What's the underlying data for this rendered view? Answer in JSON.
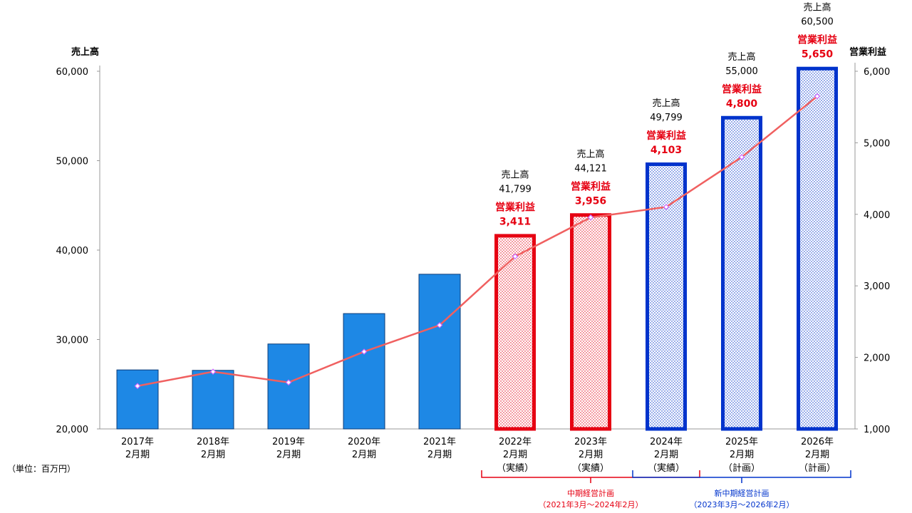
{
  "chart_data": {
    "type": "bar",
    "categories": [
      {
        "year": "2017年",
        "period": "2月期",
        "status": ""
      },
      {
        "year": "2018年",
        "period": "2月期",
        "status": ""
      },
      {
        "year": "2019年",
        "period": "2月期",
        "status": ""
      },
      {
        "year": "2020年",
        "period": "2月期",
        "status": ""
      },
      {
        "year": "2021年",
        "period": "2月期",
        "status": ""
      },
      {
        "year": "2022年",
        "period": "2月期",
        "status": "（実績）"
      },
      {
        "year": "2023年",
        "period": "2月期",
        "status": "（実績）"
      },
      {
        "year": "2024年",
        "period": "2月期",
        "status": "（実績）"
      },
      {
        "year": "2025年",
        "period": "2月期",
        "status": "（計画）"
      },
      {
        "year": "2026年",
        "period": "2月期",
        "status": "（計画）"
      }
    ],
    "series": [
      {
        "name": "売上高",
        "type": "bar",
        "axis": "left",
        "values": [
          26600,
          26550,
          29500,
          32900,
          37300,
          41799,
          44121,
          49799,
          55000,
          60500
        ],
        "styles": [
          "solid",
          "solid",
          "solid",
          "solid",
          "solid",
          "red-dotted",
          "red-dotted",
          "blue-dotted",
          "blue-dotted",
          "blue-dotted"
        ]
      },
      {
        "name": "営業利益",
        "type": "line",
        "axis": "right",
        "values": [
          1600,
          1800,
          1650,
          2080,
          2450,
          3411,
          3956,
          4103,
          4800,
          5650
        ],
        "color": "#f06060"
      }
    ],
    "labels": [
      null,
      null,
      null,
      null,
      null,
      {
        "sales_title": "売上高",
        "sales_value": "41,799",
        "profit_title": "営業利益",
        "profit_value": "3,411"
      },
      {
        "sales_title": "売上高",
        "sales_value": "44,121",
        "profit_title": "営業利益",
        "profit_value": "3,956"
      },
      {
        "sales_title": "売上高",
        "sales_value": "49,799",
        "profit_title": "営業利益",
        "profit_value": "4,103"
      },
      {
        "sales_title": "売上高",
        "sales_value": "55,000",
        "profit_title": "営業利益",
        "profit_value": "4,800"
      },
      {
        "sales_title": "売上高",
        "sales_value": "60,500",
        "profit_title": "営業利益",
        "profit_value": "5,650"
      }
    ],
    "y_left": {
      "title": "売上高",
      "min": 20000,
      "max": 60000,
      "ticks": [
        "20,000",
        "30,000",
        "40,000",
        "50,000",
        "60,000"
      ]
    },
    "y_right": {
      "title": "営業利益",
      "min": 1000,
      "max": 6000,
      "ticks": [
        "1,000",
        "2,000",
        "3,000",
        "4,000",
        "5,000",
        "6,000"
      ]
    },
    "unit": "（単位：百万円）",
    "plans": [
      {
        "name": "中期経営計画",
        "range": "（2021年3月～2024年2月）",
        "from": 5,
        "to": 7,
        "color": "#e60012"
      },
      {
        "name": "新中期経営計画",
        "range": "（2023年3月～2026年2月）",
        "from": 7,
        "to": 9,
        "color": "#0033cc"
      }
    ],
    "colors": {
      "solid_bar": "#1e88e5",
      "red": "#e60012",
      "blue": "#0033cc",
      "line": "#f06060",
      "marker": "#cc66ff"
    },
    "grid": false
  }
}
